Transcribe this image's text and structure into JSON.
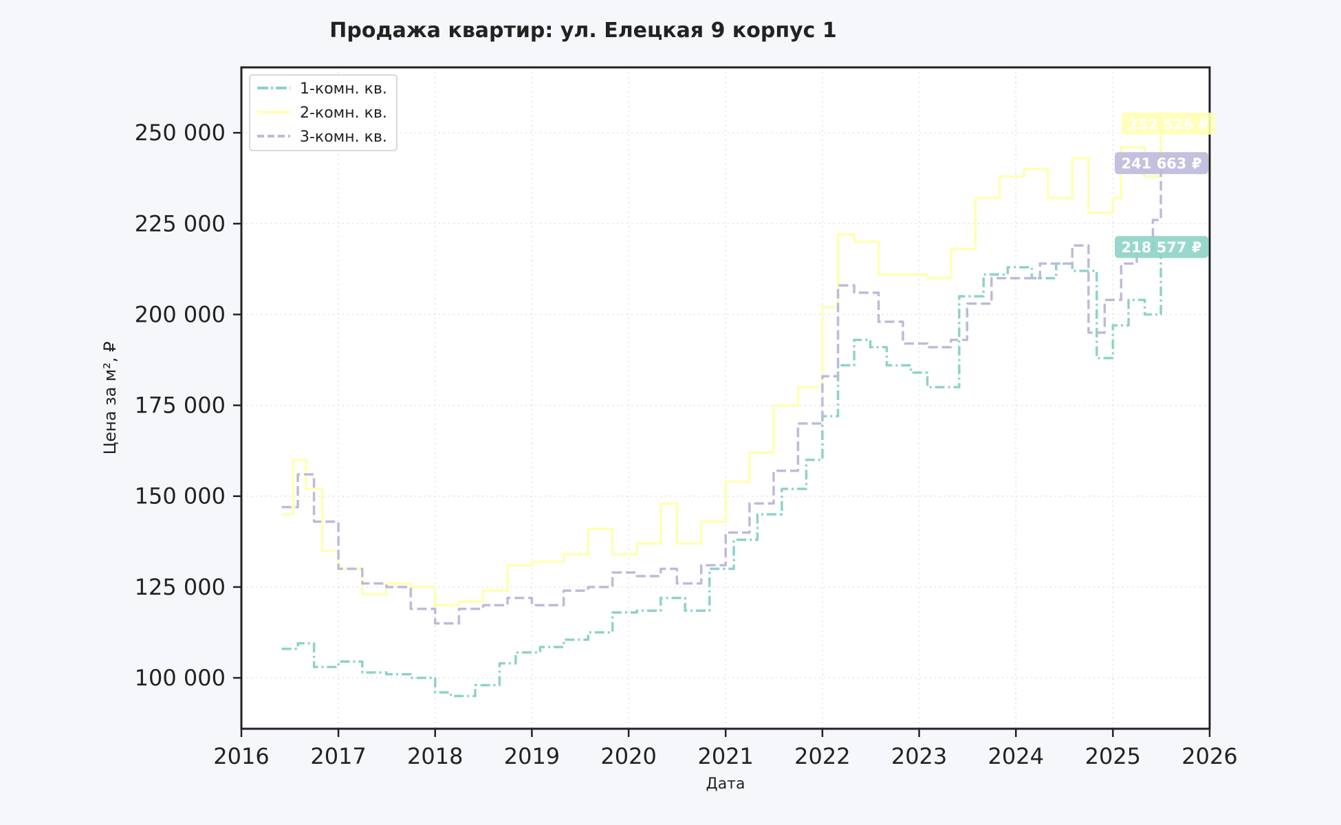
{
  "chart_data": {
    "type": "line",
    "title": "Продажа квартир: ул. Елецкая 9 корпус 1",
    "xlabel": "Дата",
    "ylabel": "Цена за м², ₽",
    "xlim": [
      "2016-01-01",
      "2026-01-01"
    ],
    "ylim": [
      86000,
      268000
    ],
    "x_ticks": [
      "2016",
      "2017",
      "2018",
      "2019",
      "2020",
      "2021",
      "2022",
      "2023",
      "2024",
      "2025",
      "2026"
    ],
    "y_ticks": [
      {
        "value": 100000,
        "label": "100 000"
      },
      {
        "value": 125000,
        "label": "125 000"
      },
      {
        "value": 150000,
        "label": "150 000"
      },
      {
        "value": 175000,
        "label": "175 000"
      },
      {
        "value": 200000,
        "label": "200 000"
      },
      {
        "value": 225000,
        "label": "225 000"
      },
      {
        "value": 250000,
        "label": "250 000"
      }
    ],
    "grid": true,
    "legend_position": "top-left",
    "series": [
      {
        "name": "1-комн. кв.",
        "color": "#8dd3c7",
        "dash": "dashdot",
        "last_value_label": "218 577 ₽",
        "points": [
          [
            "2016-06-01",
            108000
          ],
          [
            "2016-08-01",
            109500
          ],
          [
            "2016-10-01",
            103000
          ],
          [
            "2017-01-01",
            104500
          ],
          [
            "2017-04-01",
            101500
          ],
          [
            "2017-07-01",
            101000
          ],
          [
            "2017-10-01",
            100000
          ],
          [
            "2018-01-01",
            96000
          ],
          [
            "2018-03-01",
            95000
          ],
          [
            "2018-06-01",
            98000
          ],
          [
            "2018-09-01",
            104000
          ],
          [
            "2018-11-01",
            107000
          ],
          [
            "2019-02-01",
            108500
          ],
          [
            "2019-05-01",
            110500
          ],
          [
            "2019-08-01",
            112500
          ],
          [
            "2019-11-01",
            118000
          ],
          [
            "2020-02-01",
            118500
          ],
          [
            "2020-05-01",
            122000
          ],
          [
            "2020-08-01",
            118500
          ],
          [
            "2020-11-01",
            130000
          ],
          [
            "2021-02-01",
            138000
          ],
          [
            "2021-05-01",
            145000
          ],
          [
            "2021-08-01",
            152000
          ],
          [
            "2021-11-01",
            160000
          ],
          [
            "2022-01-01",
            172000
          ],
          [
            "2022-03-01",
            186000
          ],
          [
            "2022-05-01",
            193000
          ],
          [
            "2022-07-01",
            191000
          ],
          [
            "2022-09-01",
            186000
          ],
          [
            "2022-12-01",
            184000
          ],
          [
            "2023-02-01",
            180000
          ],
          [
            "2023-05-01",
            180000
          ],
          [
            "2023-06-01",
            205000
          ],
          [
            "2023-09-01",
            211000
          ],
          [
            "2023-12-01",
            213000
          ],
          [
            "2024-03-01",
            210000
          ],
          [
            "2024-06-01",
            214000
          ],
          [
            "2024-08-01",
            212000
          ],
          [
            "2024-11-01",
            188000
          ],
          [
            "2025-01-01",
            197000
          ],
          [
            "2025-03-01",
            204000
          ],
          [
            "2025-05-01",
            200000
          ],
          [
            "2025-07-01",
            218577
          ]
        ]
      },
      {
        "name": "2-комн. кв.",
        "color": "#ffffb3",
        "dash": "solid",
        "last_value_label": "252 526 ₽",
        "points": [
          [
            "2016-06-01",
            145000
          ],
          [
            "2016-07-15",
            160000
          ],
          [
            "2016-09-01",
            152000
          ],
          [
            "2016-11-01",
            135000
          ],
          [
            "2017-01-01",
            130000
          ],
          [
            "2017-04-01",
            123000
          ],
          [
            "2017-07-01",
            126000
          ],
          [
            "2017-10-01",
            125000
          ],
          [
            "2018-01-01",
            120000
          ],
          [
            "2018-04-01",
            121000
          ],
          [
            "2018-07-01",
            124000
          ],
          [
            "2018-10-01",
            131000
          ],
          [
            "2019-01-01",
            132000
          ],
          [
            "2019-05-01",
            134000
          ],
          [
            "2019-08-01",
            141000
          ],
          [
            "2019-11-01",
            134000
          ],
          [
            "2020-02-01",
            137000
          ],
          [
            "2020-05-01",
            148000
          ],
          [
            "2020-07-01",
            137000
          ],
          [
            "2020-10-01",
            143000
          ],
          [
            "2021-01-01",
            154000
          ],
          [
            "2021-04-01",
            162000
          ],
          [
            "2021-07-01",
            175000
          ],
          [
            "2021-10-01",
            180000
          ],
          [
            "2022-01-01",
            202000
          ],
          [
            "2022-03-01",
            222000
          ],
          [
            "2022-05-01",
            220000
          ],
          [
            "2022-08-01",
            211000
          ],
          [
            "2022-11-01",
            211000
          ],
          [
            "2023-02-01",
            210000
          ],
          [
            "2023-05-01",
            218000
          ],
          [
            "2023-08-01",
            232000
          ],
          [
            "2023-11-01",
            238000
          ],
          [
            "2024-02-01",
            240000
          ],
          [
            "2024-05-01",
            232000
          ],
          [
            "2024-08-01",
            243000
          ],
          [
            "2024-10-01",
            228000
          ],
          [
            "2025-01-01",
            232000
          ],
          [
            "2025-02-01",
            246000
          ],
          [
            "2025-05-01",
            238000
          ],
          [
            "2025-07-01",
            252526
          ]
        ]
      },
      {
        "name": "3-комн. кв.",
        "color": "#bebada",
        "dash": "dashed",
        "last_value_label": "241 663 ₽",
        "points": [
          [
            "2016-06-01",
            147000
          ],
          [
            "2016-08-01",
            156000
          ],
          [
            "2016-10-01",
            143000
          ],
          [
            "2017-01-01",
            130000
          ],
          [
            "2017-04-01",
            126000
          ],
          [
            "2017-07-01",
            125000
          ],
          [
            "2017-10-01",
            119000
          ],
          [
            "2018-01-01",
            115000
          ],
          [
            "2018-04-01",
            119000
          ],
          [
            "2018-07-01",
            120000
          ],
          [
            "2018-10-01",
            122000
          ],
          [
            "2019-01-01",
            120000
          ],
          [
            "2019-05-01",
            124000
          ],
          [
            "2019-08-01",
            125000
          ],
          [
            "2019-11-01",
            129000
          ],
          [
            "2020-02-01",
            128000
          ],
          [
            "2020-05-01",
            130000
          ],
          [
            "2020-07-01",
            126000
          ],
          [
            "2020-10-01",
            131000
          ],
          [
            "2021-01-01",
            140000
          ],
          [
            "2021-04-01",
            148000
          ],
          [
            "2021-07-01",
            157000
          ],
          [
            "2021-10-01",
            170000
          ],
          [
            "2022-01-01",
            183000
          ],
          [
            "2022-03-01",
            208000
          ],
          [
            "2022-05-01",
            206000
          ],
          [
            "2022-08-01",
            198000
          ],
          [
            "2022-11-01",
            192000
          ],
          [
            "2023-02-01",
            191000
          ],
          [
            "2023-05-01",
            193000
          ],
          [
            "2023-07-01",
            203000
          ],
          [
            "2023-10-01",
            210000
          ],
          [
            "2024-01-01",
            210000
          ],
          [
            "2024-04-01",
            214000
          ],
          [
            "2024-08-01",
            219000
          ],
          [
            "2024-10-01",
            195000
          ],
          [
            "2024-12-01",
            204000
          ],
          [
            "2025-02-01",
            214000
          ],
          [
            "2025-04-01",
            218000
          ],
          [
            "2025-06-01",
            226000
          ],
          [
            "2025-07-01",
            241663
          ]
        ]
      }
    ]
  }
}
